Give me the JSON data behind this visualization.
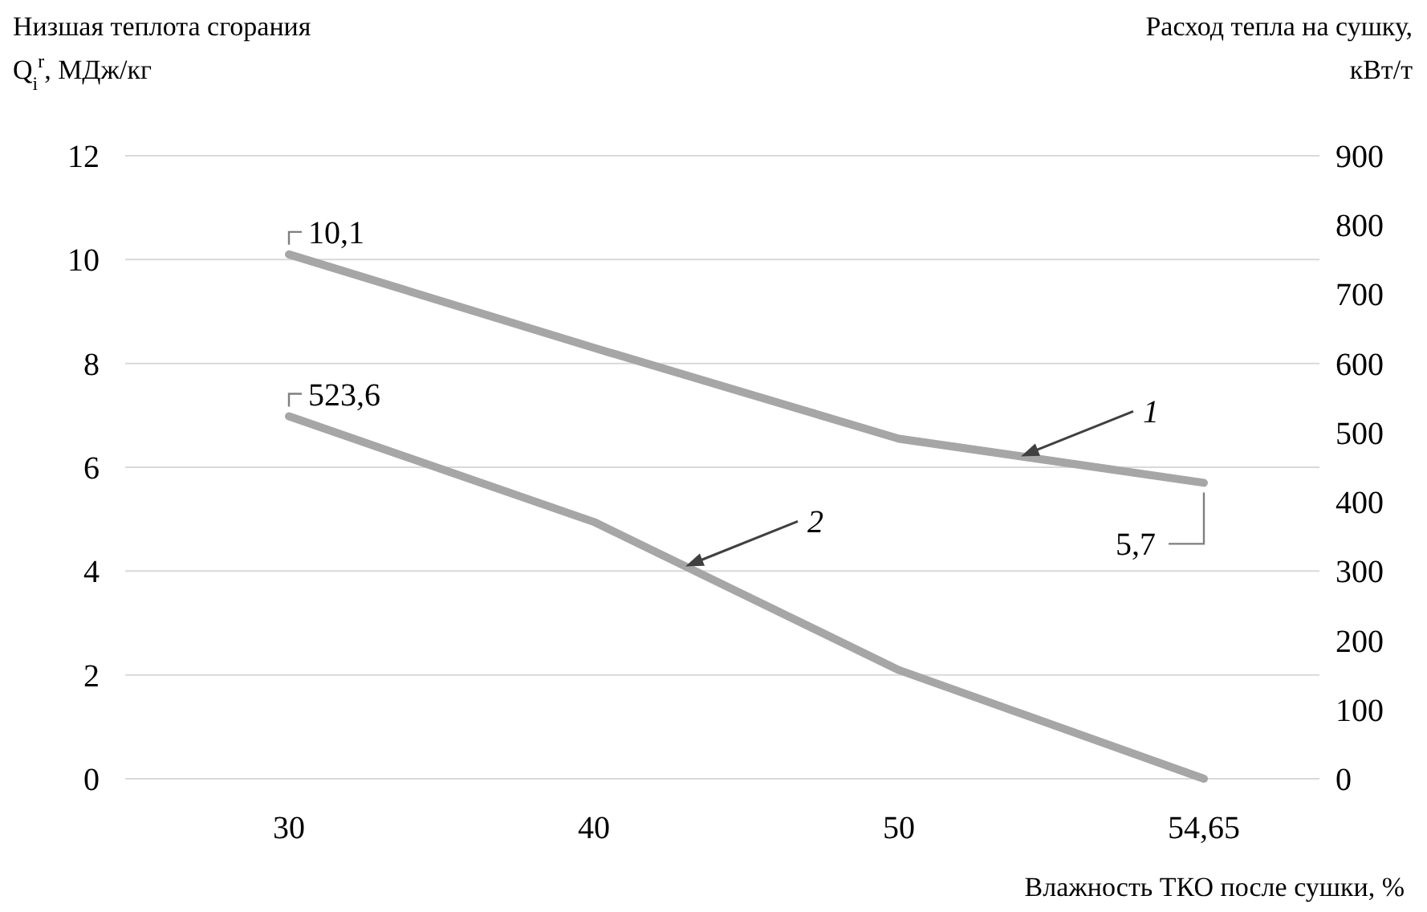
{
  "chart_data": {
    "type": "line",
    "ylabel": "Низшая теплота сгорания Q$_{i}$$^{r}$, МДж/кг",
    "y2label": "Расход тепла на сушку, кВт/т",
    "xlabel": "Влажность ТКО после сушки, %",
    "categories": [
      "30",
      "40",
      "50",
      "54,65"
    ],
    "series": [
      {
        "name": "1",
        "color": "#a6a6a6",
        "values": [
          10.1,
          8.3,
          6.55,
          5.7
        ],
        "value_labels": [
          "10,1",
          null,
          null,
          "5,7"
        ]
      },
      {
        "name": "2",
        "color": "#a6a6a6",
        "axis": "y2",
        "values": [
          523.6,
          371,
          157,
          0
        ],
        "value_labels": [
          "523,6",
          null,
          null,
          null
        ]
      }
    ],
    "ylim": [
      0,
      12
    ],
    "yticks": [
      0,
      2,
      4,
      6,
      8,
      10,
      12
    ],
    "y2lim": [
      0,
      900
    ],
    "y2ticks": [
      0,
      100,
      200,
      300,
      400,
      500,
      600,
      700,
      800,
      900
    ],
    "grid": "y",
    "marker": "none",
    "line_style": "solid"
  }
}
